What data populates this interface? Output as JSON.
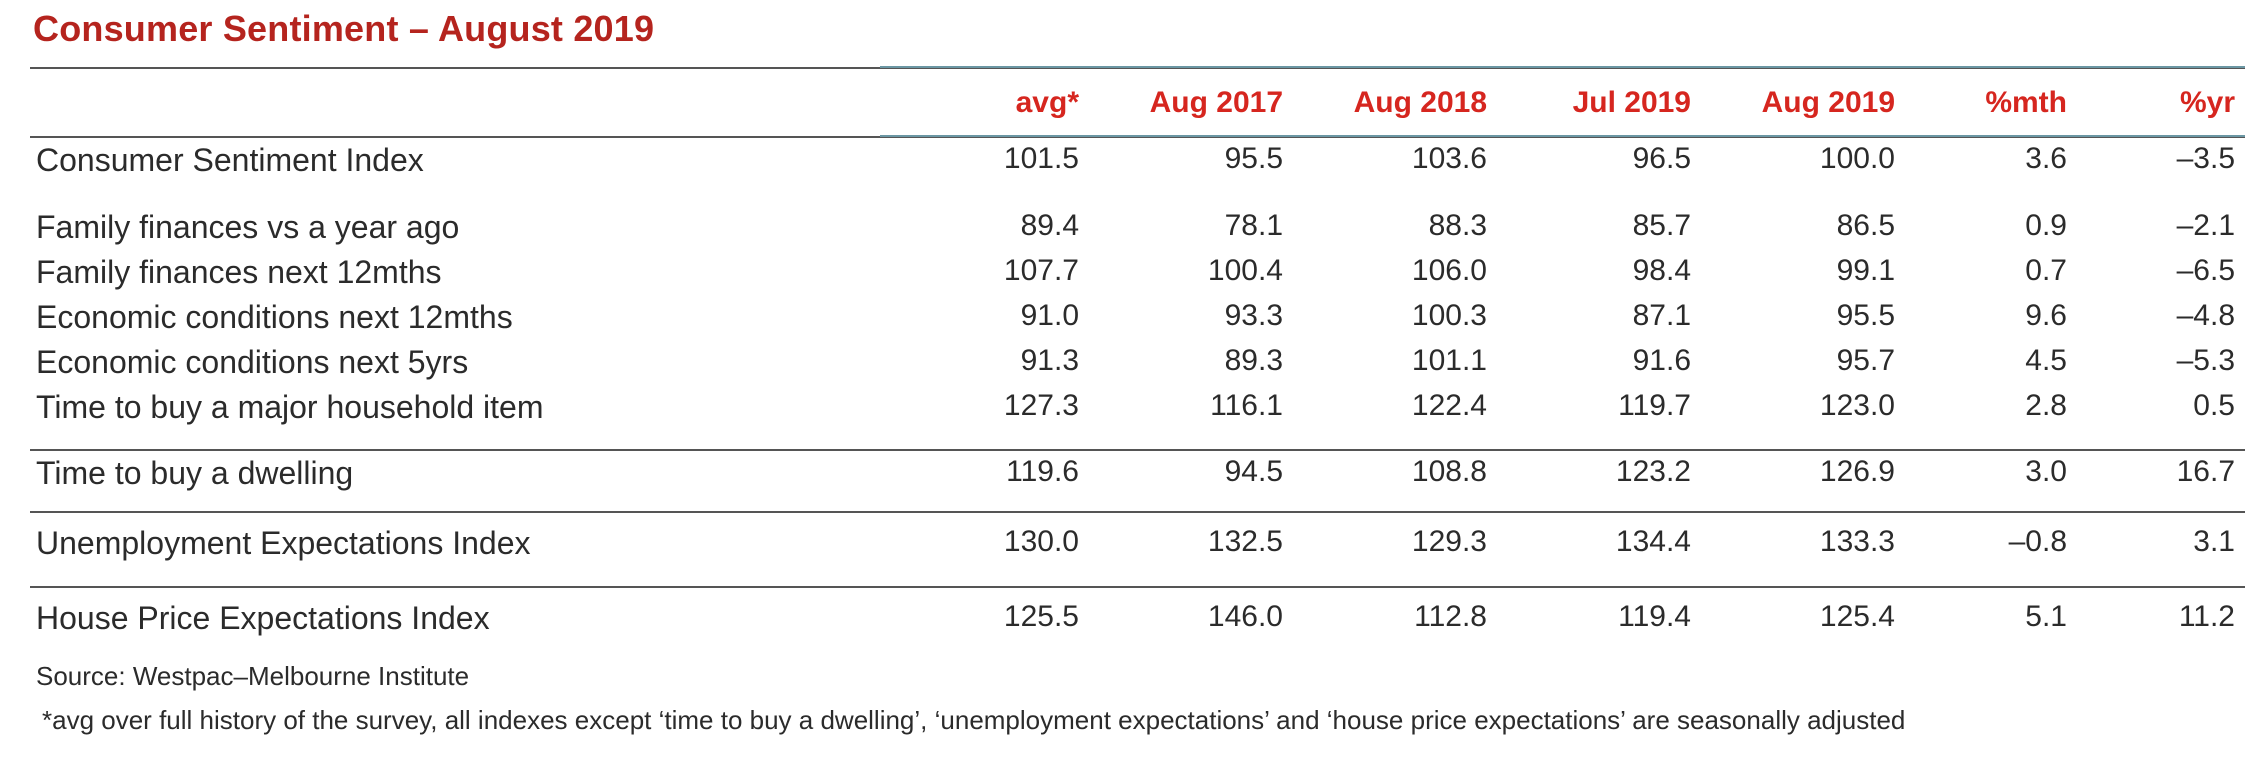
{
  "title": "Consumer Sentiment – August 2019",
  "columns": [
    "avg*",
    "Aug 2017",
    "Aug 2018",
    "Jul 2019",
    "Aug 2019",
    "%mth",
    "%yr"
  ],
  "rows": [
    {
      "label": "Consumer Sentiment Index",
      "values": [
        "101.5",
        "95.5",
        "103.6",
        "96.5",
        "100.0",
        "3.6",
        "–3.5"
      ]
    },
    {
      "label": "Family finances vs a year ago",
      "values": [
        "89.4",
        "78.1",
        "88.3",
        "85.7",
        "86.5",
        "0.9",
        "–2.1"
      ]
    },
    {
      "label": "Family finances next 12mths",
      "values": [
        "107.7",
        "100.4",
        "106.0",
        "98.4",
        "99.1",
        "0.7",
        "–6.5"
      ]
    },
    {
      "label": "Economic conditions next 12mths",
      "values": [
        "91.0",
        "93.3",
        "100.3",
        "87.1",
        "95.5",
        "9.6",
        "–4.8"
      ]
    },
    {
      "label": "Economic conditions next 5yrs",
      "values": [
        "91.3",
        "89.3",
        "101.1",
        "91.6",
        "95.7",
        "4.5",
        "–5.3"
      ]
    },
    {
      "label": "Time to buy a major household item",
      "values": [
        "127.3",
        "116.1",
        "122.4",
        "119.7",
        "123.0",
        "2.8",
        "0.5"
      ]
    },
    {
      "label": "Time to buy a dwelling",
      "values": [
        "119.6",
        "94.5",
        "108.8",
        "123.2",
        "126.9",
        "3.0",
        "16.7"
      ]
    },
    {
      "label": "Unemployment Expectations Index",
      "values": [
        "130.0",
        "132.5",
        "129.3",
        "134.4",
        "133.3",
        "–0.8",
        "3.1"
      ]
    },
    {
      "label": "House Price Expectations Index",
      "values": [
        "125.5",
        "146.0",
        "112.8",
        "119.4",
        "125.4",
        "5.1",
        "11.2"
      ]
    }
  ],
  "source": "Source: Westpac–Melbourne Institute",
  "footnote": "*avg over full history of the survey, all indexes except ‘time to buy a dwelling’, ‘unemployment expectations’ and ‘house price expectations’ are seasonally adjusted",
  "colors": {
    "title": "#b5241e",
    "header": "#d6261f",
    "text": "#2b2b2b",
    "accent_rule": "#6b97a4"
  }
}
